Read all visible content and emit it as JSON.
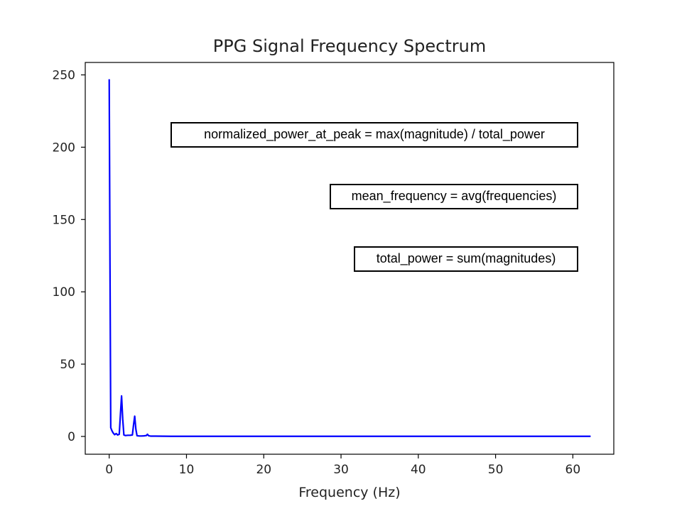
{
  "chart_data": {
    "type": "line",
    "title": "PPG Signal Frequency Spectrum",
    "xlabel": "Frequency (Hz)",
    "ylabel": "",
    "xlim": [
      -3.1,
      65.3
    ],
    "ylim": [
      -12.3,
      258.6
    ],
    "xticks": [
      0,
      10,
      20,
      30,
      40,
      50,
      60
    ],
    "yticks": [
      0,
      50,
      100,
      150,
      200,
      250
    ],
    "grid": false,
    "series": [
      {
        "color": "#0000ff",
        "x": [
          0,
          0.1,
          0.2,
          0.35,
          0.5,
          0.7,
          0.9,
          1.1,
          1.3,
          1.45,
          1.6,
          1.75,
          1.9,
          2.1,
          2.4,
          2.7,
          3.0,
          3.15,
          3.3,
          3.45,
          3.6,
          3.9,
          4.2,
          4.5,
          4.8,
          4.95,
          5.1,
          5.4,
          6.0,
          8.0,
          10.0,
          20.0,
          30.0,
          40.0,
          50.0,
          60.0,
          62.3
        ],
        "y": [
          247,
          120,
          6,
          4,
          2.5,
          1.2,
          2,
          1,
          1.5,
          15,
          28,
          12,
          1,
          0.6,
          0.8,
          0.8,
          1,
          8,
          14,
          5,
          0.5,
          0.3,
          0.3,
          0.4,
          0.6,
          1.5,
          0.5,
          0.2,
          0.2,
          0.1,
          0.1,
          0.1,
          0.1,
          0.1,
          0.1,
          0.1,
          0.1
        ]
      }
    ],
    "annotations": [
      "normalized_power_at_peak = max(magnitude) / total_power",
      "mean_frequency = avg(frequencies)",
      "total_power = sum(magnitudes)"
    ]
  }
}
